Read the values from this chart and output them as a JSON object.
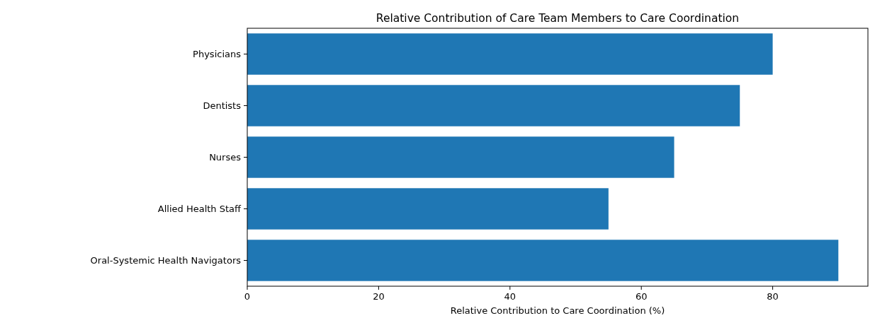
{
  "chart_data": {
    "type": "bar",
    "orientation": "horizontal",
    "title": "Relative Contribution of Care Team Members to Care Coordination",
    "xlabel": "Relative Contribution to Care Coordination (%)",
    "categories": [
      "Physicians",
      "Dentists",
      "Nurses",
      "Allied Health Staff",
      "Oral-Systemic Health Navigators"
    ],
    "values": [
      80,
      75,
      65,
      55,
      90
    ],
    "color": "#1f77b4",
    "xlim": [
      0,
      94.5
    ],
    "xticks": [
      0,
      20,
      40,
      60,
      80
    ],
    "grid": false
  }
}
